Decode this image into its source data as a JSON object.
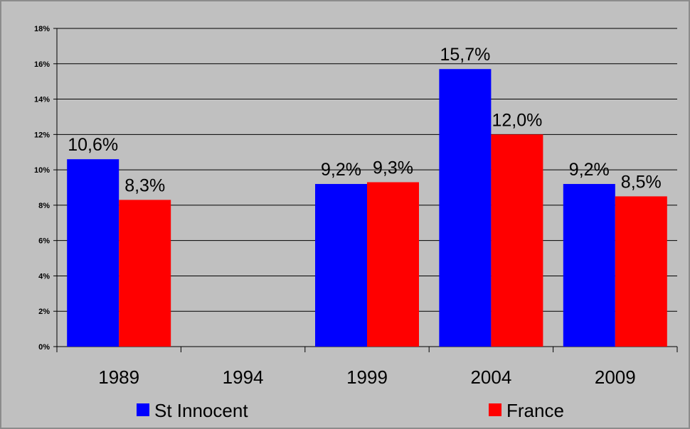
{
  "chart_data": {
    "type": "bar",
    "categories": [
      "1989",
      "1994",
      "1999",
      "2004",
      "2009"
    ],
    "series": [
      {
        "name": "St Innocent",
        "color": "#0000ff",
        "values": [
          10.6,
          null,
          9.2,
          15.7,
          9.2
        ],
        "labels": [
          "10,6%",
          "",
          "9,2%",
          "15,7%",
          "9,2%"
        ]
      },
      {
        "name": "France",
        "color": "#ff0000",
        "values": [
          8.3,
          null,
          9.3,
          12.0,
          8.5
        ],
        "labels": [
          "8,3%",
          "",
          "9,3%",
          "12,0%",
          "8,5%"
        ]
      }
    ],
    "ylim": [
      0,
      18
    ],
    "yticks": [
      0,
      2,
      4,
      6,
      8,
      10,
      12,
      14,
      16,
      18
    ],
    "ytick_labels": [
      "0%",
      "2%",
      "4%",
      "6%",
      "8%",
      "10%",
      "12%",
      "14%",
      "16%",
      "18%"
    ],
    "grid": true,
    "legend_position": "bottom",
    "background": "#c0c0c0"
  }
}
